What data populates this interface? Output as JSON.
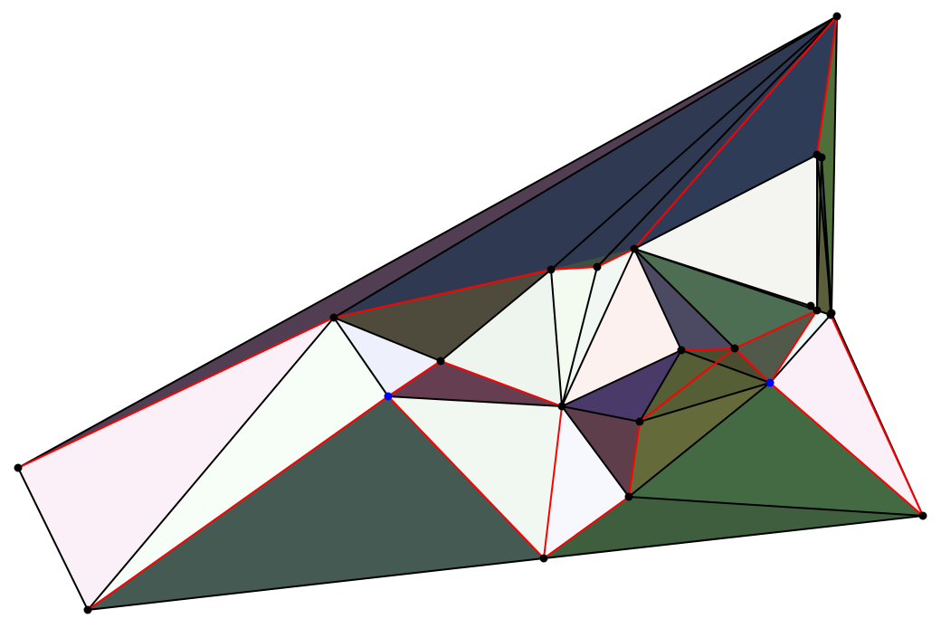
{
  "colors": {
    "background": "#ffffff",
    "edge_default": "#000000",
    "edge_highlight": "#ff0000",
    "vertex_default": "#000000",
    "vertex_highlight": "#0000ff"
  },
  "vertices": {
    "A": {
      "highlight": false
    },
    "B": {
      "highlight": false
    },
    "C": {
      "highlight": false
    },
    "D": {
      "highlight": false
    },
    "E": {
      "highlight": false
    },
    "F": {
      "highlight": false
    },
    "G": {
      "highlight": false
    },
    "H": {
      "highlight": true
    },
    "I": {
      "highlight": false
    },
    "J": {
      "highlight": false
    },
    "K": {
      "highlight": false
    },
    "L": {
      "highlight": false
    },
    "M": {
      "highlight": false
    },
    "N": {
      "highlight": false
    },
    "O": {
      "highlight": false
    },
    "P": {
      "highlight": false
    },
    "Q": {
      "highlight": false
    },
    "R": {
      "highlight": false
    },
    "S": {
      "highlight": true
    },
    "T": {
      "highlight": false
    },
    "U": {
      "highlight": false
    },
    "V": {
      "highlight": false
    },
    "W": {
      "highlight": false
    }
  },
  "faces": [
    {
      "v": [
        "A",
        "D",
        "E"
      ],
      "color": "#523e52"
    },
    {
      "v": [
        "A",
        "E",
        "B"
      ],
      "color": "#fbf0f8"
    },
    {
      "v": [
        "B",
        "E",
        "H"
      ],
      "color": "#f7fdf7"
    },
    {
      "v": [
        "B",
        "H",
        "C"
      ],
      "color": "#445a52"
    },
    {
      "v": [
        "E",
        "D",
        "F"
      ],
      "color": "#2f3a52"
    },
    {
      "v": [
        "E",
        "F",
        "G"
      ],
      "color": "#4e4b3c"
    },
    {
      "v": [
        "E",
        "G",
        "H"
      ],
      "color": "#eef0fb"
    },
    {
      "v": [
        "H",
        "G",
        "I"
      ],
      "color": "#653f51"
    },
    {
      "v": [
        "H",
        "I",
        "C"
      ],
      "color": "#f1f8f1"
    },
    {
      "v": [
        "G",
        "F",
        "I"
      ],
      "color": "#eef4ee"
    },
    {
      "v": [
        "F",
        "J",
        "I"
      ],
      "color": "#f3fbf0"
    },
    {
      "v": [
        "F",
        "D",
        "K"
      ],
      "color": "#2f3a52"
    },
    {
      "v": [
        "F",
        "K",
        "J"
      ],
      "color": "#3f4f40"
    },
    {
      "v": [
        "J",
        "K",
        "I"
      ],
      "color": "#f1f8f3"
    },
    {
      "v": [
        "J",
        "L",
        "K"
      ],
      "color": "#4e5e45"
    },
    {
      "v": [
        "K",
        "L",
        "M"
      ],
      "color": "#f4f4f0"
    },
    {
      "v": [
        "K",
        "N",
        "I"
      ],
      "color": "#fdf1f0"
    },
    {
      "v": [
        "K",
        "O",
        "N"
      ],
      "color": "#4c4a62"
    },
    {
      "v": [
        "K",
        "M",
        "O"
      ],
      "color": "#4e6e54"
    },
    {
      "v": [
        "K",
        "U",
        "M"
      ],
      "color": "#4a6a52"
    },
    {
      "v": [
        "O",
        "M",
        "S"
      ],
      "color": "#51594a"
    },
    {
      "v": [
        "N",
        "O",
        "S"
      ],
      "color": "#4c4c30"
    },
    {
      "v": [
        "I",
        "N",
        "P"
      ],
      "color": "#4a3a6a"
    },
    {
      "v": [
        "N",
        "S",
        "P"
      ],
      "color": "#565e36"
    },
    {
      "v": [
        "I",
        "P",
        "Q"
      ],
      "color": "#5e3e4a"
    },
    {
      "v": [
        "P",
        "S",
        "Q"
      ],
      "color": "#656a3a"
    },
    {
      "v": [
        "I",
        "Q",
        "C"
      ],
      "color": "#f7f8fd"
    },
    {
      "v": [
        "C",
        "Q",
        "R"
      ],
      "color": "#3e5e3e"
    },
    {
      "v": [
        "Q",
        "S",
        "R"
      ],
      "color": "#446a44"
    },
    {
      "v": [
        "S",
        "T",
        "R"
      ],
      "color": "#fbf0f8"
    },
    {
      "v": [
        "M",
        "T",
        "S"
      ],
      "color": "#f0f8f8"
    },
    {
      "v": [
        "M",
        "V",
        "T"
      ],
      "color": "#5a5e3a"
    },
    {
      "v": [
        "V",
        "W",
        "T"
      ],
      "color": "#3e5a52"
    },
    {
      "v": [
        "T",
        "W",
        "R"
      ],
      "color": "#4e5e50"
    },
    {
      "v": [
        "D",
        "W",
        "L"
      ],
      "color": "#4e6e3a"
    },
    {
      "v": [
        "W",
        "V",
        "L"
      ],
      "color": "#44545c"
    },
    {
      "v": [
        "L",
        "V",
        "M"
      ],
      "color": "#5a6e4a"
    },
    {
      "v": [
        "D",
        "L",
        "K"
      ],
      "color": "#2f3c58"
    }
  ],
  "edges_highlight": [
    [
      "A",
      "E"
    ],
    [
      "E",
      "F"
    ],
    [
      "F",
      "J"
    ],
    [
      "J",
      "K"
    ],
    [
      "K",
      "D"
    ],
    [
      "D",
      "L"
    ],
    [
      "H",
      "C"
    ],
    [
      "H",
      "G"
    ],
    [
      "G",
      "I"
    ],
    [
      "I",
      "C"
    ],
    [
      "C",
      "Q"
    ],
    [
      "Q",
      "P"
    ],
    [
      "P",
      "O"
    ],
    [
      "O",
      "M"
    ],
    [
      "M",
      "S"
    ],
    [
      "S",
      "R"
    ],
    [
      "N",
      "O"
    ],
    [
      "O",
      "S"
    ],
    [
      "T",
      "R"
    ],
    [
      "H",
      "B"
    ]
  ],
  "edges_default": [
    [
      "A",
      "D"
    ],
    [
      "A",
      "B"
    ],
    [
      "B",
      "E"
    ],
    [
      "B",
      "C"
    ],
    [
      "C",
      "R"
    ],
    [
      "E",
      "D"
    ],
    [
      "E",
      "G"
    ],
    [
      "E",
      "H"
    ],
    [
      "F",
      "D"
    ],
    [
      "F",
      "G"
    ],
    [
      "F",
      "I"
    ],
    [
      "J",
      "I"
    ],
    [
      "J",
      "D"
    ],
    [
      "K",
      "I"
    ],
    [
      "K",
      "N"
    ],
    [
      "K",
      "O"
    ],
    [
      "K",
      "M"
    ],
    [
      "K",
      "U"
    ],
    [
      "K",
      "L"
    ],
    [
      "L",
      "M"
    ],
    [
      "L",
      "V"
    ],
    [
      "M",
      "V"
    ],
    [
      "M",
      "T"
    ],
    [
      "V",
      "T"
    ],
    [
      "V",
      "W"
    ],
    [
      "L",
      "W"
    ],
    [
      "D",
      "W"
    ],
    [
      "W",
      "T"
    ],
    [
      "W",
      "R"
    ],
    [
      "T",
      "S"
    ],
    [
      "U",
      "M"
    ],
    [
      "I",
      "N"
    ],
    [
      "I",
      "P"
    ],
    [
      "I",
      "Q"
    ],
    [
      "N",
      "P"
    ],
    [
      "N",
      "S"
    ],
    [
      "P",
      "S"
    ],
    [
      "Q",
      "S"
    ],
    [
      "Q",
      "R"
    ],
    [
      "H",
      "I"
    ]
  ]
}
